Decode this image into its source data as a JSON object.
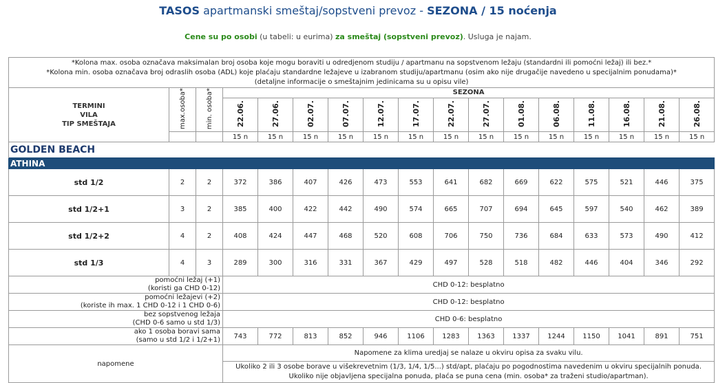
{
  "title": {
    "bold1": "TASOS",
    "normal": "apartmanski smeštaj/sopstveni prevoz -",
    "bold2": "SEZONA / 15 noćenja"
  },
  "subtitle": {
    "green1": "Cene su po osobi",
    "normal1": "(u tabeli: u eurima)",
    "green2": "za smeštaj (sopstveni prevoz)",
    "normal2": ". Usluga je najam."
  },
  "notes": [
    "*Kolona max. osoba označava maksimalan broj osoba koje mogu boraviti u odredjenom studiju / apartmanu na sopstvenom ležaju (standardni ili pomoćni ležaj) ili bez.*",
    "*Kolona min. osoba označava broj odraslih osoba (ADL) koje plaćaju standardne ležajeve u izabranom studiju/apartmanu (osim ako nije drugačije navedeno u specijalnim ponudama)*",
    "(detaljne informacije o smeštajnim jedinicama su u opisu vile)"
  ],
  "header": {
    "termini": "TERMINI",
    "vila": "VILA",
    "tip": "TIP SMEŠTAJA",
    "max": "max.osoba*",
    "min": "min. osoba*",
    "sezona": "SEZONA",
    "dates": [
      "22.06.",
      "27.06.",
      "02.07.",
      "07.07.",
      "12.07.",
      "17.07.",
      "22.07.",
      "27.07.",
      "01.08.",
      "06.08.",
      "11.08.",
      "16.08.",
      "21.08.",
      "26.08."
    ],
    "nights": [
      "15 n",
      "15 n",
      "15 n",
      "15 n",
      "15 n",
      "15 n",
      "15 n",
      "15 n",
      "15 n",
      "15 n",
      "15 n",
      "15 n",
      "15 n",
      "15 n"
    ]
  },
  "villa_name": "GOLDEN BEACH",
  "section": "ATHINA",
  "rooms": [
    {
      "type": "std 1/2",
      "max": "2",
      "min": "2",
      "prices": [
        "372",
        "386",
        "407",
        "426",
        "473",
        "553",
        "641",
        "682",
        "669",
        "622",
        "575",
        "521",
        "446",
        "375"
      ]
    },
    {
      "type": "std 1/2+1",
      "max": "3",
      "min": "2",
      "prices": [
        "385",
        "400",
        "422",
        "442",
        "490",
        "574",
        "665",
        "707",
        "694",
        "645",
        "597",
        "540",
        "462",
        "389"
      ]
    },
    {
      "type": "std 1/2+2",
      "max": "4",
      "min": "2",
      "prices": [
        "408",
        "424",
        "447",
        "468",
        "520",
        "608",
        "706",
        "750",
        "736",
        "684",
        "633",
        "573",
        "490",
        "412"
      ]
    },
    {
      "type": "std 1/3",
      "max": "4",
      "min": "3",
      "prices": [
        "289",
        "300",
        "316",
        "331",
        "367",
        "429",
        "497",
        "528",
        "518",
        "482",
        "446",
        "404",
        "346",
        "292"
      ]
    }
  ],
  "extras": [
    {
      "l1": "pomoćni ležaj (+1)",
      "l2": "(koristi ga CHD 0-12)",
      "value": "CHD 0-12: besplatno"
    },
    {
      "l1": "pomoćni ležajevi (+2)",
      "l2": "(koriste ih max. 1 CHD 0-12 i 1 CHD 0-6)",
      "value": "CHD 0-12: besplatno"
    },
    {
      "l1": "bez sopstvenog ležaja",
      "l2": "(CHD 0-6 samo u std 1/3)",
      "value": "CHD 0-6: besplatno"
    }
  ],
  "single": {
    "l1": "ako 1 osoba boravi sama",
    "l2": "(samo u std 1/2 i 1/2+1)",
    "prices": [
      "743",
      "772",
      "813",
      "852",
      "946",
      "1106",
      "1283",
      "1363",
      "1337",
      "1244",
      "1150",
      "1041",
      "891",
      "751"
    ]
  },
  "napomene": {
    "label": "napomene",
    "n1": "Napomene za klima uredjaj se nalaze u okviru opisa za svaku vilu.",
    "n2": "Ukoliko 2 ili 3 osobe borave u višekrevetnim (1/3, 1/4, 1/5...) std/apt, plaćaju po pogodnostima navedenim u okviru specijalnih ponuda.",
    "n3": "Ukoliko nije objavljena specijalna ponuda, plaća se puna cena (min. osoba* za traženi studio/apartman)."
  }
}
